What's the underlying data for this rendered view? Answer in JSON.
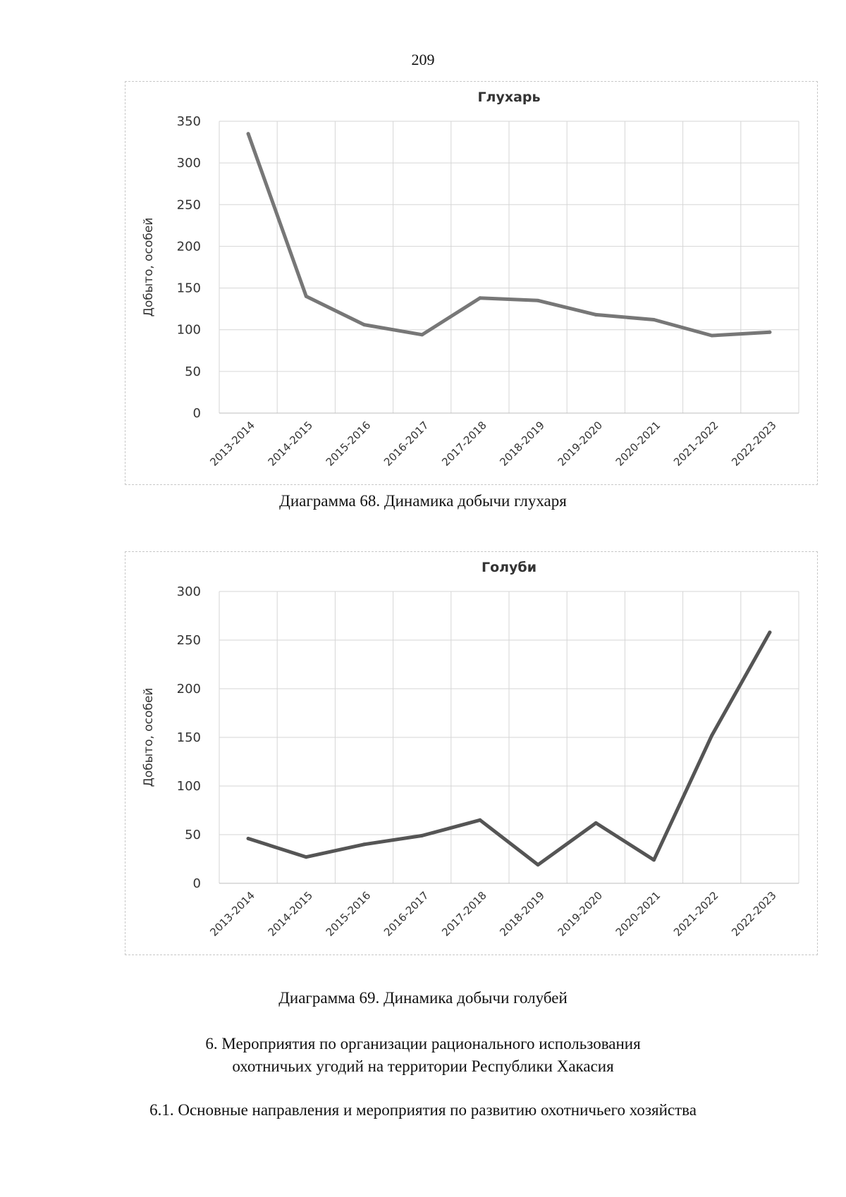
{
  "page": {
    "number": "209",
    "caption_68": "Диаграмма 68. Динамика добычи глухаря",
    "caption_69": "Диаграмма 69. Динамика добычи голубей",
    "section_heading_line1": "6. Мероприятия по организации рационального использования",
    "section_heading_line2": "охотничьих угодий на территории Республики Хакасия",
    "subsection_heading": "6.1. Основные направления и мероприятия по развитию охотничьего хозяйства"
  },
  "chart_data": [
    {
      "type": "line",
      "title": "Глухарь",
      "xlabel": "",
      "ylabel": "Добыто, особей",
      "categories": [
        "2013-2014",
        "2014-2015",
        "2015-2016",
        "2016-2017",
        "2017-2018",
        "2018-2019",
        "2019-2020",
        "2020-2021",
        "2021-2022",
        "2022-2023"
      ],
      "values": [
        335,
        140,
        106,
        94,
        138,
        135,
        118,
        112,
        93,
        97
      ],
      "ylim": [
        0,
        350
      ],
      "yticks": [
        0,
        50,
        100,
        150,
        200,
        250,
        300,
        350
      ],
      "grid": true,
      "line_color": "#777777"
    },
    {
      "type": "line",
      "title": "Голуби",
      "xlabel": "",
      "ylabel": "Добыто, особей",
      "categories": [
        "2013-2014",
        "2014-2015",
        "2015-2016",
        "2016-2017",
        "2017-2018",
        "2018-2019",
        "2019-2020",
        "2020-2021",
        "2021-2022",
        "2022-2023"
      ],
      "values": [
        46,
        27,
        40,
        49,
        65,
        19,
        62,
        24,
        152,
        258
      ],
      "ylim": [
        0,
        300
      ],
      "yticks": [
        0,
        50,
        100,
        150,
        200,
        250,
        300
      ],
      "grid": true,
      "line_color": "#555555"
    }
  ]
}
